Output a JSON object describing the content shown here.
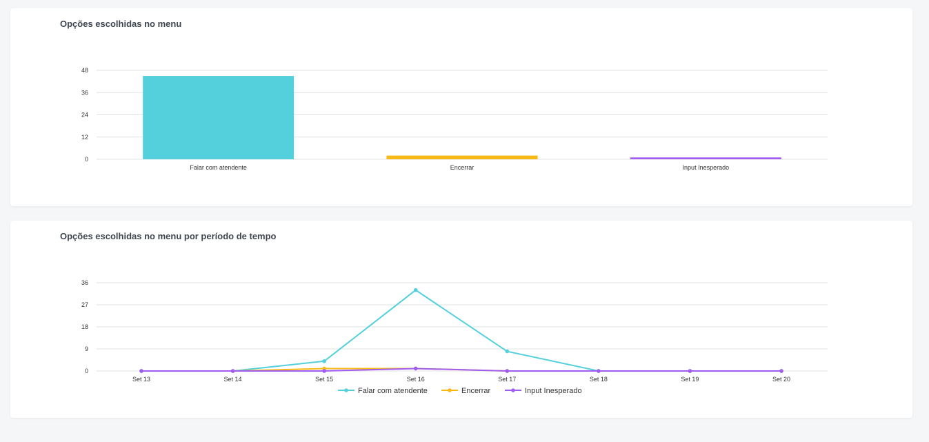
{
  "chart_data": [
    {
      "type": "bar",
      "title": "Opções escolhidas no menu",
      "categories": [
        "Falar com atendente",
        "Encerrar",
        "Input Inesperado"
      ],
      "values": [
        45,
        2,
        1
      ],
      "colors": [
        "#53d0db",
        "#f9b915",
        "#a05cf0"
      ],
      "yticks": [
        0,
        12,
        24,
        36,
        48
      ],
      "ylim": [
        0,
        48
      ],
      "grid": true
    },
    {
      "type": "line",
      "title": "Opções escolhidas no menu por período de tempo",
      "categories": [
        "Set 13",
        "Set 14",
        "Set 15",
        "Set 16",
        "Set 17",
        "Set 18",
        "Set 19",
        "Set 20"
      ],
      "series": [
        {
          "name": "Falar com atendente",
          "color": "#53d0db",
          "values": [
            0,
            0,
            4,
            33,
            8,
            0,
            0,
            0
          ]
        },
        {
          "name": "Encerrar",
          "color": "#f9b915",
          "values": [
            0,
            0,
            1,
            1,
            0,
            0,
            0,
            0
          ]
        },
        {
          "name": "Input Inesperado",
          "color": "#a05cf0",
          "values": [
            0,
            0,
            0,
            1,
            0,
            0,
            0,
            0
          ]
        }
      ],
      "yticks": [
        0,
        9,
        18,
        27,
        36
      ],
      "ylim": [
        0,
        36
      ],
      "grid": true,
      "legend": "bottom"
    }
  ]
}
